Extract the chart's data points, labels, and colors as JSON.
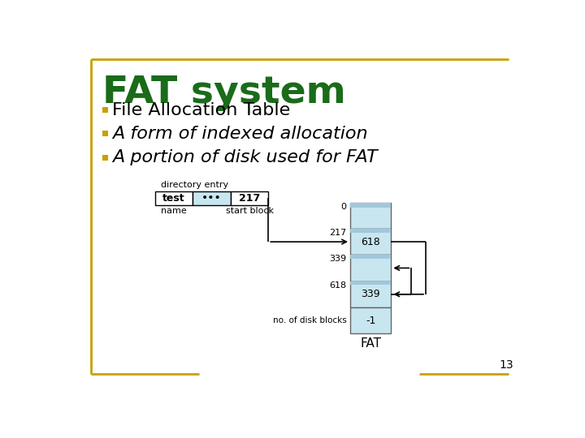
{
  "title": "FAT system",
  "title_color": "#1a6b1a",
  "bullet_color": "#c8a000",
  "bullets": [
    "File Allocation Table",
    "A form of indexed allocation",
    "A portion of disk used for FAT"
  ],
  "background_color": "#ffffff",
  "border_color": "#c8a000",
  "fat_block_color": "#c8e6f0",
  "fat_block_border": "#666666",
  "slide_number": "13",
  "dir_entry_label": "directory entry",
  "dir_name_label": "name",
  "dir_startblock_label": "start block",
  "dir_name_text": "test",
  "dir_dots_text": "•••",
  "dir_number_text": "217",
  "fat_label": "FAT",
  "no_disk_blocks_label": "no. of disk blocks",
  "fat_rows": [
    {
      "row_label": "0",
      "value": "",
      "top_highlight": true
    },
    {
      "row_label": "217",
      "value": "618",
      "top_highlight": true
    },
    {
      "row_label": "339",
      "value": "",
      "top_highlight": true
    },
    {
      "row_label": "618",
      "value": "339",
      "top_highlight": true
    },
    {
      "row_label": "",
      "value": "-1",
      "top_highlight": false
    }
  ]
}
